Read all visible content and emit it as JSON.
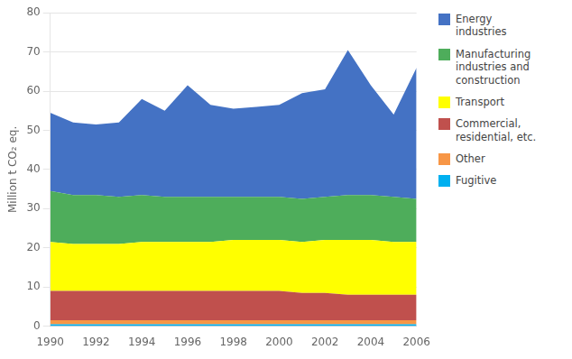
{
  "chart_data": {
    "type": "area",
    "stacked": true,
    "ylabel": "Million t CO₂ eq.",
    "x": [
      1990,
      1991,
      1992,
      1993,
      1994,
      1995,
      1996,
      1997,
      1998,
      1999,
      2000,
      2001,
      2002,
      2003,
      2004,
      2005,
      2006
    ],
    "series": [
      {
        "name": "Fugitive",
        "color": "#00b0f0",
        "values": [
          0.5,
          0.5,
          0.5,
          0.5,
          0.5,
          0.5,
          0.5,
          0.5,
          0.5,
          0.5,
          0.5,
          0.5,
          0.5,
          0.5,
          0.5,
          0.5,
          0.5
        ]
      },
      {
        "name": "Other",
        "color": "#f79646",
        "values": [
          1.0,
          1.0,
          1.0,
          1.0,
          1.0,
          1.0,
          1.0,
          1.0,
          1.0,
          1.0,
          1.0,
          1.0,
          1.0,
          1.0,
          1.0,
          1.0,
          1.0
        ]
      },
      {
        "name": "Commercial,\nresidential, etc.",
        "color": "#c0504d",
        "values": [
          7.5,
          7.5,
          7.5,
          7.5,
          7.5,
          7.5,
          7.5,
          7.5,
          7.5,
          7.5,
          7.5,
          7.0,
          7.0,
          6.5,
          6.5,
          6.5,
          6.5
        ]
      },
      {
        "name": "Transport",
        "color": "#ffff00",
        "values": [
          12.5,
          12.0,
          12.0,
          12.0,
          12.5,
          12.5,
          12.5,
          12.5,
          13.0,
          13.0,
          13.0,
          13.0,
          13.5,
          14.0,
          14.0,
          13.5,
          13.5
        ]
      },
      {
        "name": "Manufacturing\nindustries and\nconstruction",
        "color": "#4ead5b",
        "values": [
          13.0,
          12.5,
          12.5,
          12.0,
          12.0,
          11.5,
          11.5,
          11.5,
          11.0,
          11.0,
          11.0,
          11.0,
          11.0,
          11.5,
          11.5,
          11.5,
          11.0
        ]
      },
      {
        "name": "Energy\nindustries",
        "color": "#4472c4",
        "values": [
          20.0,
          18.5,
          18.0,
          19.0,
          24.5,
          22.0,
          28.5,
          23.5,
          22.5,
          23.0,
          23.5,
          27.0,
          27.5,
          37.0,
          28.0,
          21.0,
          33.5
        ]
      }
    ],
    "xlim": [
      1990,
      2006
    ],
    "xticks": [
      1990,
      1992,
      1994,
      1996,
      1998,
      2000,
      2002,
      2004,
      2006
    ],
    "ylim": [
      0,
      80
    ],
    "yticks": [
      0,
      10,
      20,
      30,
      40,
      50,
      60,
      70,
      80
    ],
    "grid": true,
    "legend": "right"
  }
}
